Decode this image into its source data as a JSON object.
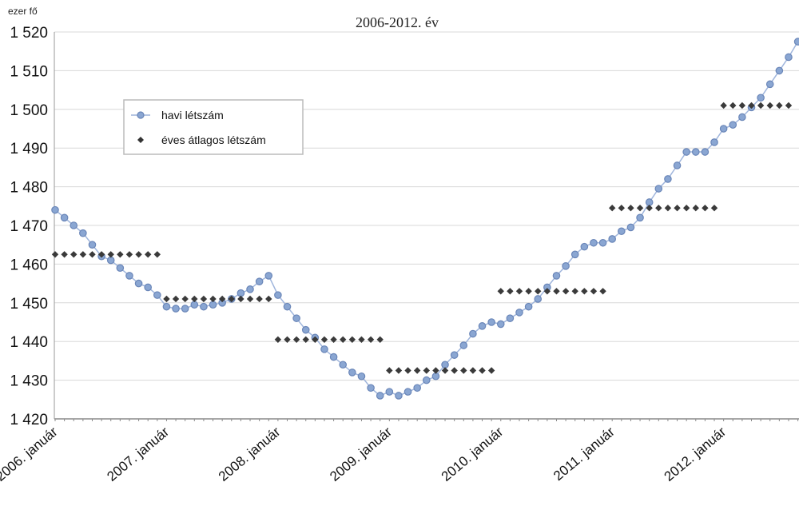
{
  "chart_data": {
    "type": "line",
    "title": "2006-2012. év",
    "unit_label": "ezer fő",
    "ylim": [
      1420,
      1520
    ],
    "y_ticks": [
      "1 420",
      "1 430",
      "1 440",
      "1 450",
      "1 460",
      "1 470",
      "1 480",
      "1 490",
      "1 500",
      "1 510",
      "1 520"
    ],
    "x_tick_labels": [
      "2006. január",
      "2007. január",
      "2008. január",
      "2009. január",
      "2010. január",
      "2011. január",
      "2012. január"
    ],
    "legend_position": "upper-left",
    "series": [
      {
        "name": "havi létszám",
        "marker": "circle",
        "color": "#7f9fcf",
        "values": [
          1474,
          1472,
          1470,
          1468,
          1465,
          1462,
          1461,
          1459,
          1457,
          1455,
          1454,
          1452,
          1449,
          1448.5,
          1448.5,
          1449.5,
          1449,
          1449.5,
          1450,
          1451,
          1452.5,
          1453.5,
          1455.5,
          1457,
          1452,
          1449,
          1446,
          1443,
          1441,
          1438,
          1436,
          1434,
          1432,
          1431,
          1428,
          1426,
          1427,
          1426,
          1427,
          1428,
          1430,
          1431,
          1434,
          1436.5,
          1439,
          1442,
          1444,
          1445,
          1444.5,
          1446,
          1447.5,
          1449,
          1451,
          1454,
          1457,
          1459.5,
          1462.5,
          1464.5,
          1465.5,
          1465.5,
          1466.5,
          1468.5,
          1469.5,
          1472,
          1476,
          1479.5,
          1482,
          1485.5,
          1489,
          1489,
          1489,
          1491.5,
          1495,
          1496,
          1498,
          1500.5,
          1503,
          1506.5,
          1510,
          1513.5,
          1517.5
        ]
      },
      {
        "name": "éves átlagos létszám",
        "marker": "diamond",
        "color": "#3a3a3a",
        "annual_values": [
          1462.5,
          1451,
          1440.5,
          1432.5,
          1453,
          1474.5,
          1501
        ]
      }
    ]
  }
}
